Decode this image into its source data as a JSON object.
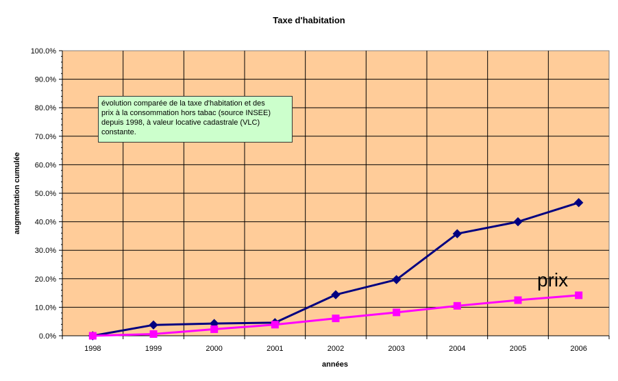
{
  "chart_data": {
    "type": "line",
    "title": "Taxe d'habitation",
    "xlabel": "années",
    "ylabel": "augmentation cumulée",
    "categories": [
      "1998",
      "1999",
      "2000",
      "2001",
      "2002",
      "2003",
      "2004",
      "2005",
      "2006"
    ],
    "y_ticks": [
      "0.0%",
      "10.0%",
      "20.0%",
      "30.0%",
      "40.0%",
      "50.0%",
      "60.0%",
      "70.0%",
      "80.0%",
      "90.0%",
      "100.0%"
    ],
    "ylim": [
      0,
      100
    ],
    "grid": true,
    "plot_background": "#ffcc99",
    "series": [
      {
        "name": "",
        "color": "#000080",
        "marker": "diamond",
        "values": [
          0.0,
          3.8,
          4.3,
          4.6,
          14.4,
          19.7,
          35.8,
          40.0,
          46.7
        ]
      },
      {
        "name": "prix",
        "color": "#ff00ff",
        "marker": "square",
        "values": [
          0.0,
          0.6,
          2.3,
          3.9,
          6.1,
          8.2,
          10.5,
          12.5,
          14.2
        ]
      }
    ],
    "annotations": [
      {
        "text": "évolution comparée de la taxe d'habitation et des\nprix à la consommation hors tabac (source INSEE)\ndepuis 1998, à valeur locative cadastrale (VLC)\nconstante."
      },
      {
        "text": "prix"
      }
    ]
  }
}
